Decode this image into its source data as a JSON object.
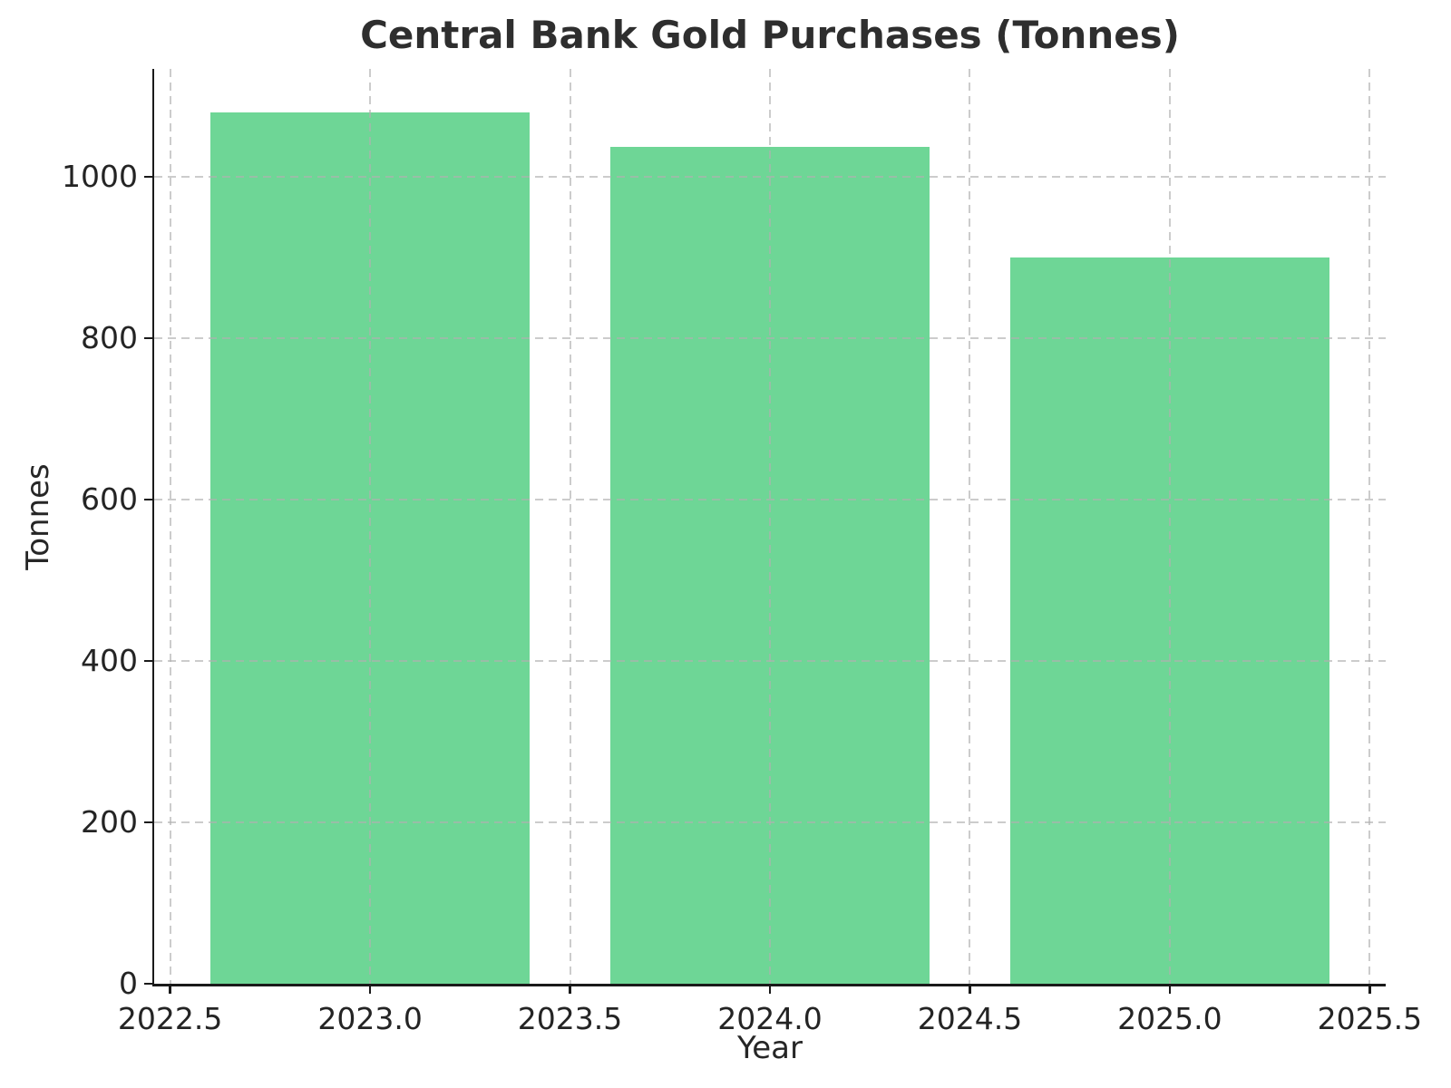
{
  "chart_data": {
    "type": "bar",
    "title": "Central Bank Gold Purchases (Tonnes)",
    "xlabel": "Year",
    "ylabel": "Tonnes",
    "categories": [
      2023,
      2024,
      2025
    ],
    "values": [
      1080,
      1037,
      900
    ],
    "series": [
      {
        "name": "Central bank gold purchases",
        "values": [
          1080,
          1037,
          900
        ]
      }
    ],
    "bar_width_years": 0.8,
    "bar_color": "#6ed696",
    "background_color": "#ffffff",
    "spine_color": "#1a1a1a",
    "grid": true,
    "grid_style": "dashed",
    "grid_color": "#b0b0b0",
    "grid_above_bars": true,
    "legend": "none",
    "xlim": [
      2022.46,
      2025.54
    ],
    "ylim": [
      0,
      1134
    ],
    "x_ticks": [
      2022.5,
      2023.0,
      2023.5,
      2024.0,
      2024.5,
      2025.0,
      2025.5
    ],
    "x_tick_labels": [
      "2022.5",
      "2023.0",
      "2023.5",
      "2024.0",
      "2024.5",
      "2025.0",
      "2025.5"
    ],
    "y_ticks": [
      0,
      200,
      400,
      600,
      800,
      1000
    ],
    "y_tick_labels": [
      "0",
      "200",
      "400",
      "600",
      "800",
      "1000"
    ]
  }
}
